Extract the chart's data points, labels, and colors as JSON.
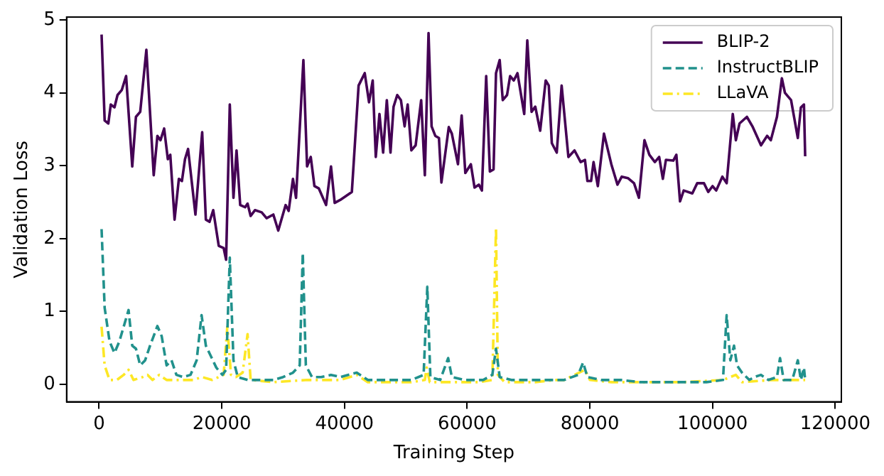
{
  "chart_data": {
    "type": "line",
    "xlabel": "Training Step",
    "ylabel": "Validation Loss",
    "xlim": [
      -5300,
      121000
    ],
    "xticks": [
      0,
      20000,
      40000,
      60000,
      80000,
      100000,
      120000
    ],
    "ylim": [
      -0.24,
      5.04
    ],
    "yticks": [
      0,
      1,
      2,
      3,
      4,
      5
    ],
    "grid": false,
    "legend": "top right",
    "series": [
      {
        "name": "BLIP-2",
        "color": "#440154",
        "line_style": "solid",
        "x": [
          400,
          900,
          1500,
          1900,
          2500,
          3000,
          3700,
          4400,
          5400,
          6000,
          6700,
          7700,
          8900,
          9500,
          10000,
          10600,
          11200,
          11600,
          12300,
          13000,
          13500,
          14000,
          14500,
          15700,
          16800,
          17400,
          18000,
          18600,
          19500,
          20300,
          20700,
          21300,
          21900,
          22400,
          23000,
          23800,
          24200,
          24700,
          25400,
          26500,
          27300,
          28400,
          29200,
          30400,
          30900,
          31600,
          32100,
          33300,
          33900,
          34500,
          35100,
          35800,
          37000,
          37800,
          38400,
          39300,
          41200,
          42300,
          43300,
          44000,
          44600,
          45100,
          45700,
          46300,
          46900,
          47500,
          48000,
          48600,
          49200,
          49800,
          50300,
          50900,
          51600,
          52500,
          53100,
          53700,
          54200,
          54800,
          55400,
          55800,
          57000,
          57500,
          58500,
          59100,
          59700,
          60600,
          61200,
          61900,
          62400,
          63100,
          63700,
          64300,
          64700,
          65300,
          65800,
          66500,
          67000,
          67600,
          68200,
          69300,
          69800,
          70500,
          71100,
          71900,
          72800,
          73300,
          73800,
          74600,
          75400,
          76500,
          77500,
          78500,
          79200,
          79600,
          80200,
          80600,
          81300,
          82300,
          83500,
          84500,
          85200,
          86200,
          87200,
          88000,
          88900,
          89700,
          90600,
          91300,
          91900,
          92400,
          93600,
          94100,
          94700,
          95300,
          96700,
          97500,
          98600,
          99300,
          100000,
          100600,
          101600,
          102300,
          103300,
          103800,
          104400,
          105600,
          106500,
          107900,
          108900,
          109500,
          110500,
          111300,
          111800,
          112800,
          113900,
          114400,
          114900,
          115100
        ],
        "values": [
          4.8,
          3.62,
          3.58,
          3.84,
          3.8,
          3.97,
          4.04,
          4.23,
          2.99,
          3.67,
          3.74,
          4.59,
          2.87,
          3.41,
          3.35,
          3.51,
          3.09,
          3.15,
          2.26,
          2.82,
          2.79,
          3.09,
          3.23,
          2.33,
          3.46,
          2.26,
          2.23,
          2.39,
          1.9,
          1.87,
          1.71,
          3.84,
          2.56,
          3.21,
          2.46,
          2.43,
          2.48,
          2.31,
          2.39,
          2.36,
          2.28,
          2.33,
          2.11,
          2.46,
          2.38,
          2.82,
          2.56,
          4.45,
          2.99,
          3.12,
          2.72,
          2.69,
          2.46,
          2.99,
          2.49,
          2.53,
          2.64,
          4.1,
          4.27,
          3.87,
          4.17,
          3.12,
          3.71,
          3.18,
          3.9,
          3.18,
          3.81,
          3.97,
          3.9,
          3.54,
          3.84,
          3.21,
          3.28,
          3.9,
          2.87,
          4.82,
          3.54,
          3.41,
          3.38,
          2.77,
          3.53,
          3.44,
          3.02,
          3.69,
          2.9,
          3.02,
          2.7,
          2.74,
          2.66,
          4.23,
          2.92,
          2.95,
          4.27,
          4.45,
          3.9,
          3.97,
          4.23,
          4.17,
          4.27,
          3.71,
          4.72,
          3.74,
          3.81,
          3.48,
          4.17,
          4.1,
          3.31,
          3.18,
          4.1,
          3.12,
          3.21,
          3.05,
          3.08,
          2.79,
          2.79,
          3.05,
          2.72,
          3.44,
          3.02,
          2.74,
          2.85,
          2.83,
          2.76,
          2.56,
          3.35,
          3.15,
          3.05,
          3.12,
          2.82,
          3.08,
          3.07,
          3.15,
          2.51,
          2.66,
          2.62,
          2.76,
          2.76,
          2.64,
          2.72,
          2.66,
          2.85,
          2.76,
          3.71,
          3.35,
          3.58,
          3.67,
          3.54,
          3.28,
          3.41,
          3.35,
          3.67,
          4.2,
          4.0,
          3.9,
          3.38,
          3.8,
          3.84,
          3.13
        ]
      },
      {
        "name": "InstructBLIP",
        "color": "#21918c",
        "line_style": "dashed",
        "x": [
          400,
          900,
          1700,
          2500,
          3300,
          4000,
          4800,
          5400,
          6000,
          6700,
          7500,
          8300,
          9500,
          10200,
          11000,
          11800,
          12600,
          13700,
          14900,
          15900,
          16700,
          17400,
          18200,
          19100,
          20100,
          20700,
          21300,
          21900,
          22600,
          24200,
          26100,
          28400,
          30000,
          31600,
          32700,
          33200,
          33700,
          34700,
          36200,
          37800,
          39300,
          42000,
          43800,
          44700,
          47800,
          50900,
          52900,
          53500,
          54000,
          55600,
          56900,
          57500,
          59500,
          62600,
          64100,
          64700,
          65300,
          67200,
          70300,
          73400,
          75800,
          78100,
          78900,
          79600,
          81900,
          85100,
          88200,
          91200,
          99000,
          101700,
          102300,
          102900,
          103500,
          104000,
          104800,
          106000,
          106800,
          107900,
          109100,
          110500,
          111000,
          111600,
          113000,
          113900,
          114400,
          114900,
          115100
        ],
        "values": [
          2.13,
          1.05,
          0.59,
          0.43,
          0.59,
          0.79,
          1.02,
          0.53,
          0.49,
          0.26,
          0.33,
          0.53,
          0.8,
          0.66,
          0.26,
          0.33,
          0.13,
          0.1,
          0.13,
          0.33,
          0.95,
          0.53,
          0.39,
          0.23,
          0.13,
          0.2,
          1.74,
          0.33,
          0.1,
          0.06,
          0.06,
          0.06,
          0.1,
          0.16,
          0.26,
          1.8,
          0.26,
          0.1,
          0.1,
          0.13,
          0.1,
          0.16,
          0.06,
          0.06,
          0.06,
          0.06,
          0.13,
          1.34,
          0.1,
          0.06,
          0.36,
          0.1,
          0.06,
          0.06,
          0.13,
          0.49,
          0.1,
          0.06,
          0.06,
          0.06,
          0.06,
          0.13,
          0.3,
          0.1,
          0.06,
          0.06,
          0.03,
          0.03,
          0.03,
          0.06,
          0.95,
          0.33,
          0.53,
          0.26,
          0.16,
          0.06,
          0.1,
          0.13,
          0.06,
          0.1,
          0.36,
          0.06,
          0.06,
          0.33,
          0.06,
          0.23,
          0.06
        ]
      },
      {
        "name": "LLaVA",
        "color": "#fde725",
        "line_style": "dashdot",
        "x": [
          400,
          900,
          1700,
          2900,
          4000,
          4800,
          5600,
          7100,
          7900,
          8700,
          9800,
          11000,
          13000,
          15300,
          16800,
          18400,
          20300,
          20900,
          21500,
          22300,
          23400,
          24200,
          24700,
          28400,
          33900,
          39300,
          42000,
          43800,
          46300,
          50900,
          53100,
          53400,
          53900,
          57100,
          61800,
          64100,
          64700,
          65000,
          66100,
          71100,
          74200,
          75800,
          79200,
          80000,
          83500,
          88200,
          95100,
          101700,
          103800,
          104800,
          109800,
          115100
        ],
        "values": [
          0.79,
          0.26,
          0.06,
          0.06,
          0.13,
          0.2,
          0.06,
          0.1,
          0.13,
          0.06,
          0.13,
          0.06,
          0.06,
          0.06,
          0.1,
          0.06,
          0.13,
          0.79,
          0.13,
          0.1,
          0.16,
          0.69,
          0.06,
          0.03,
          0.06,
          0.06,
          0.13,
          0.03,
          0.03,
          0.03,
          0.06,
          0.23,
          0.03,
          0.03,
          0.03,
          0.06,
          2.15,
          0.13,
          0.03,
          0.03,
          0.06,
          0.06,
          0.2,
          0.06,
          0.03,
          0.03,
          0.03,
          0.06,
          0.13,
          0.03,
          0.06,
          0.06
        ]
      }
    ]
  }
}
